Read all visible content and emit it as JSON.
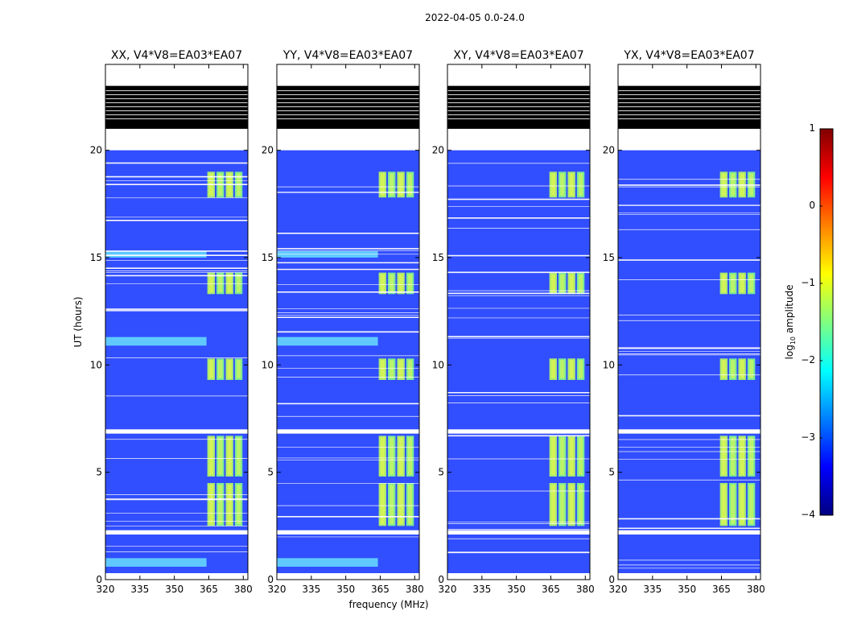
{
  "figure_title": "2022-04-05 0.0-24.0",
  "chart_data": [
    {
      "type": "heatmap",
      "title": "XX, V4*V8=EA03*EA07",
      "xlabel": "",
      "ylabel": "UT (hours)",
      "xlim": [
        320,
        382
      ],
      "ylim": [
        0,
        24
      ],
      "x_ticks": [
        "320",
        "335",
        "350",
        "365",
        "380"
      ],
      "y_ticks": [
        "0",
        "5",
        "10",
        "15",
        "20"
      ],
      "active_band_mhz": [
        364,
        380
      ],
      "flagged_hours": [
        [
          20.0,
          23.0
        ],
        [
          0.0,
          0.3
        ],
        [
          2.1,
          2.3
        ],
        [
          6.8,
          7.0
        ]
      ],
      "bright_hours": [
        [
          2.5,
          4.5
        ],
        [
          4.8,
          6.7
        ],
        [
          9.3,
          10.3
        ],
        [
          13.3,
          14.3
        ],
        [
          17.8,
          19.0
        ]
      ],
      "low_frequency_rfi_hours": [
        [
          15.0,
          15.3
        ],
        [
          10.9,
          11.3
        ],
        [
          0.6,
          1.0
        ]
      ]
    },
    {
      "type": "heatmap",
      "title": "YY, V4*V8=EA03*EA07",
      "xlabel": "frequency (MHz)",
      "ylabel": "",
      "xlim": [
        320,
        382
      ],
      "ylim": [
        0,
        24
      ],
      "x_ticks": [
        "320",
        "335",
        "350",
        "365",
        "380"
      ],
      "y_ticks": [
        "0",
        "5",
        "10",
        "15",
        "20"
      ],
      "active_band_mhz": [
        364,
        380
      ],
      "flagged_hours": [
        [
          20.0,
          23.0
        ],
        [
          0.0,
          0.3
        ],
        [
          2.1,
          2.3
        ],
        [
          6.8,
          7.0
        ]
      ],
      "bright_hours": [
        [
          2.5,
          4.5
        ],
        [
          4.8,
          6.7
        ],
        [
          9.3,
          10.3
        ],
        [
          13.3,
          14.3
        ],
        [
          17.8,
          19.0
        ]
      ],
      "low_frequency_rfi_hours": [
        [
          15.0,
          15.3
        ],
        [
          10.9,
          11.3
        ],
        [
          0.6,
          1.0
        ]
      ]
    },
    {
      "type": "heatmap",
      "title": "XY, V4*V8=EA03*EA07",
      "xlabel": "",
      "ylabel": "",
      "xlim": [
        320,
        382
      ],
      "ylim": [
        0,
        24
      ],
      "x_ticks": [
        "320",
        "335",
        "350",
        "365",
        "380"
      ],
      "y_ticks": [
        "0",
        "5",
        "10",
        "15",
        "20"
      ],
      "active_band_mhz": [
        364,
        380
      ],
      "flagged_hours": [
        [
          20.0,
          23.0
        ],
        [
          0.0,
          0.3
        ],
        [
          2.1,
          2.3
        ],
        [
          6.8,
          7.0
        ]
      ],
      "bright_hours": [
        [
          2.5,
          4.5
        ],
        [
          4.8,
          6.7
        ],
        [
          9.3,
          10.3
        ],
        [
          13.3,
          14.3
        ],
        [
          17.8,
          19.0
        ]
      ],
      "low_frequency_rfi_hours": []
    },
    {
      "type": "heatmap",
      "title": "YX, V4*V8=EA03*EA07",
      "xlabel": "",
      "ylabel": "",
      "xlim": [
        320,
        382
      ],
      "ylim": [
        0,
        24
      ],
      "x_ticks": [
        "320",
        "335",
        "350",
        "365",
        "380"
      ],
      "y_ticks": [
        "0",
        "5",
        "10",
        "15",
        "20"
      ],
      "active_band_mhz": [
        364,
        380
      ],
      "flagged_hours": [
        [
          20.0,
          23.0
        ],
        [
          0.0,
          0.3
        ],
        [
          2.1,
          2.3
        ],
        [
          6.8,
          7.0
        ]
      ],
      "bright_hours": [
        [
          2.5,
          4.5
        ],
        [
          4.8,
          6.7
        ],
        [
          9.3,
          10.3
        ],
        [
          13.3,
          14.3
        ],
        [
          17.8,
          19.0
        ]
      ],
      "low_frequency_rfi_hours": []
    }
  ],
  "colorbar": {
    "label_prefix": "log",
    "label_subscript": "10",
    "label_suffix": " amplitude",
    "range": [
      -4,
      1
    ],
    "ticks": [
      "1",
      "0",
      "−1",
      "−2",
      "−3",
      "−4"
    ],
    "colors": [
      "#800000",
      "#ff0000",
      "#ff8000",
      "#ffff00",
      "#80ff80",
      "#00ffff",
      "#0080ff",
      "#0000ff",
      "#000080"
    ]
  }
}
